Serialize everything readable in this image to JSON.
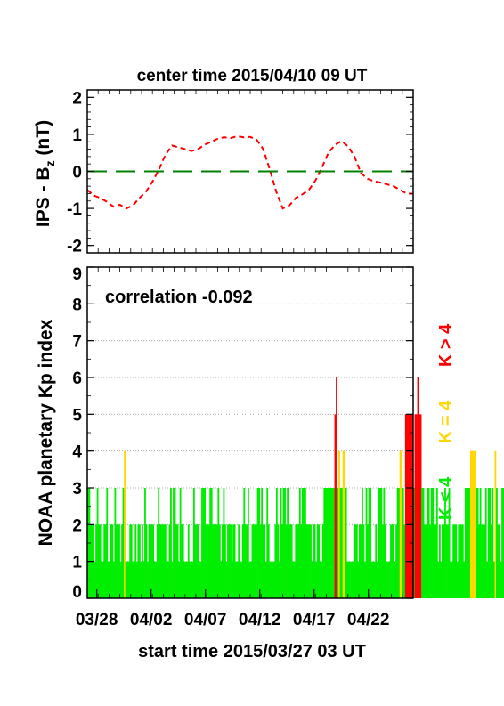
{
  "chart_data": [
    {
      "type": "line",
      "title": "center time 2015/04/10 09 UT",
      "ylabel": "IPS - B",
      "ylabel_sub": "z",
      "ylabel_unit": " (nT)",
      "ylim": [
        -2.2,
        2.2
      ],
      "yticks": [
        -2,
        -1,
        0,
        1,
        2
      ],
      "xlim_days": [
        0,
        30
      ],
      "series": [
        {
          "color": "#ff0000",
          "style": "dashed",
          "x": [
            0,
            0.6,
            1.2,
            1.8,
            2.4,
            3.0,
            3.6,
            4.2,
            4.8,
            5.4,
            6.0,
            6.6,
            7.2,
            7.8,
            8.4,
            9.0,
            9.6,
            10.2,
            10.8,
            11.4,
            12.0,
            12.6,
            13.2,
            13.8,
            14.4,
            15.0,
            15.6,
            16.2,
            16.8,
            17.4,
            18.0,
            18.6,
            19.2,
            19.8,
            20.4,
            21.0,
            21.6,
            22.2,
            22.8,
            23.4,
            24.0,
            24.6,
            25.2,
            25.8,
            26.4,
            27.0,
            27.6,
            28.2,
            28.8,
            29.4,
            30.0
          ],
          "values": [
            -0.5,
            -0.65,
            -0.72,
            -0.82,
            -0.95,
            -0.9,
            -1.0,
            -0.92,
            -0.72,
            -0.55,
            -0.28,
            0.05,
            0.45,
            0.7,
            0.65,
            0.6,
            0.55,
            0.6,
            0.72,
            0.8,
            0.88,
            0.92,
            0.9,
            0.95,
            0.92,
            0.93,
            0.85,
            0.6,
            0.05,
            -0.55,
            -1.0,
            -0.92,
            -0.72,
            -0.62,
            -0.5,
            -0.25,
            0.1,
            0.5,
            0.72,
            0.82,
            0.68,
            0.4,
            -0.05,
            -0.2,
            -0.27,
            -0.3,
            -0.35,
            -0.4,
            -0.5,
            -0.6,
            -0.6
          ]
        },
        {
          "color": "#008000",
          "style": "long-dash",
          "x": [
            0,
            30
          ],
          "values": [
            0,
            0
          ]
        }
      ]
    },
    {
      "type": "bar",
      "ylabel": "NOAA planetary Kp index",
      "xlabel": "start time 2015/03/27 03 UT",
      "annotation": "correlation -0.092",
      "ylim": [
        0,
        9
      ],
      "yticks": [
        0,
        1,
        2,
        3,
        4,
        5,
        6,
        7,
        8,
        9
      ],
      "grid": true,
      "xlim_days": [
        0,
        30
      ],
      "x_tick_labels": [
        {
          "label": "03/28",
          "day": 0.875
        },
        {
          "label": "04/02",
          "day": 5.875
        },
        {
          "label": "04/07",
          "day": 10.875
        },
        {
          "label": "04/12",
          "day": 15.875
        },
        {
          "label": "04/17",
          "day": 20.875
        },
        {
          "label": "04/22",
          "day": 25.875
        }
      ],
      "legend": [
        {
          "label": "K < 4",
          "color": "#00ee00"
        },
        {
          "label": "K = 4",
          "color": "#ffd700"
        },
        {
          "label": "K > 4",
          "color": "#ff0000"
        }
      ],
      "bin_hours": 3,
      "kp_values": [
        3,
        3,
        2,
        2,
        2,
        1,
        2,
        3,
        2,
        2,
        1,
        1,
        2,
        2,
        3,
        1,
        1,
        2,
        2,
        1,
        3,
        2,
        2,
        2,
        1,
        2,
        3,
        4,
        1,
        1,
        1,
        2,
        2,
        1,
        1,
        2,
        1,
        2,
        2,
        1,
        2,
        1,
        3,
        2,
        1,
        2,
        2,
        2,
        2,
        1,
        1,
        2,
        3,
        2,
        2,
        2,
        2,
        2,
        1,
        1,
        2,
        3,
        1,
        3,
        3,
        2,
        2,
        1,
        3,
        2,
        2,
        1,
        1,
        1,
        2,
        1,
        1,
        1,
        3,
        2,
        2,
        2,
        1,
        1,
        3,
        3,
        3,
        2,
        2,
        2,
        3,
        3,
        2,
        2,
        2,
        2,
        3,
        2,
        1,
        2,
        3,
        2,
        1,
        2,
        2,
        2,
        1,
        2,
        2,
        1,
        1,
        2,
        1,
        1,
        2,
        3,
        2,
        2,
        3,
        1,
        1,
        2,
        2,
        2,
        2,
        3,
        3,
        2,
        3,
        2,
        2,
        1,
        3,
        2,
        1,
        1,
        1,
        1,
        2,
        3,
        2,
        1,
        3,
        2,
        3,
        3,
        2,
        3,
        2,
        2,
        2,
        1,
        1,
        2,
        2,
        2,
        3,
        2,
        3,
        3,
        3,
        2,
        2,
        2,
        2,
        1,
        2,
        2,
        1,
        2,
        2,
        1,
        1,
        2,
        3,
        3,
        3,
        3,
        3,
        3,
        3,
        3,
        5,
        6,
        3,
        4,
        3,
        3,
        4,
        4,
        3,
        1,
        1,
        1,
        1,
        1,
        2,
        2,
        2,
        1,
        2,
        2,
        3,
        2,
        1,
        3,
        2,
        3,
        3,
        1,
        1,
        1,
        2,
        1,
        3,
        3,
        3,
        2,
        3,
        2,
        1,
        1,
        1,
        2,
        2,
        2,
        1,
        2,
        3,
        3,
        4,
        4,
        3,
        2,
        5,
        5,
        5,
        5,
        5,
        5,
        3,
        5,
        5,
        6,
        5,
        5,
        3,
        3,
        2,
        2,
        3,
        3,
        2,
        3,
        3,
        2,
        2,
        3,
        1,
        2,
        1,
        2,
        2,
        3,
        2,
        2,
        3,
        1,
        1,
        2,
        2,
        2,
        1,
        2,
        2,
        2,
        2,
        1,
        3,
        3,
        3,
        3,
        4,
        4,
        4,
        4,
        3,
        3,
        2,
        3,
        2,
        2,
        2,
        3,
        1,
        3,
        3,
        2,
        3,
        1,
        4,
        3,
        2,
        2,
        1,
        3,
        3,
        1,
        3,
        1
      ]
    }
  ]
}
